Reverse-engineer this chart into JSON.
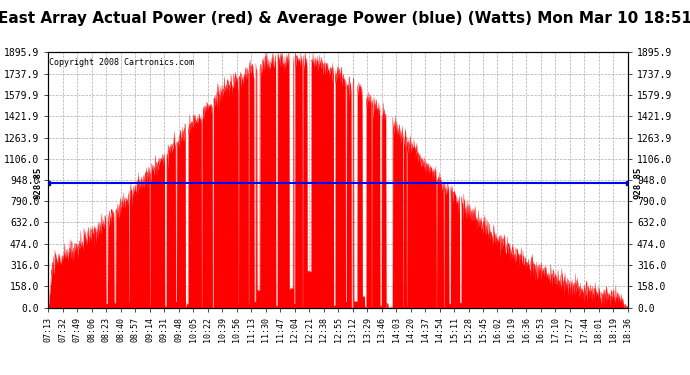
{
  "title": "East Array Actual Power (red) & Average Power (blue) (Watts) Mon Mar 10 18:51",
  "copyright": "Copyright 2008 Cartronics.com",
  "avg_power": 928.85,
  "y_max": 1895.9,
  "y_min": 0.0,
  "y_ticks": [
    0.0,
    158.0,
    316.0,
    474.0,
    632.0,
    790.0,
    948.0,
    1106.0,
    1263.9,
    1421.9,
    1579.9,
    1737.9,
    1895.9
  ],
  "x_ticks": [
    "07:13",
    "07:32",
    "07:49",
    "08:06",
    "08:23",
    "08:40",
    "08:57",
    "09:14",
    "09:31",
    "09:48",
    "10:05",
    "10:22",
    "10:39",
    "10:56",
    "11:13",
    "11:30",
    "11:47",
    "12:04",
    "12:21",
    "12:38",
    "12:55",
    "13:12",
    "13:29",
    "13:46",
    "14:03",
    "14:20",
    "14:37",
    "14:54",
    "15:11",
    "15:28",
    "15:45",
    "16:02",
    "16:19",
    "16:36",
    "16:53",
    "17:10",
    "17:27",
    "17:44",
    "18:01",
    "18:19",
    "18:36"
  ],
  "background_color": "#ffffff",
  "plot_bg_color": "#ffffff",
  "grid_color": "#999999",
  "line_color_avg": "#0000ff",
  "fill_color": "#ff0000",
  "title_fontsize": 11,
  "annotation_928": "928.85"
}
